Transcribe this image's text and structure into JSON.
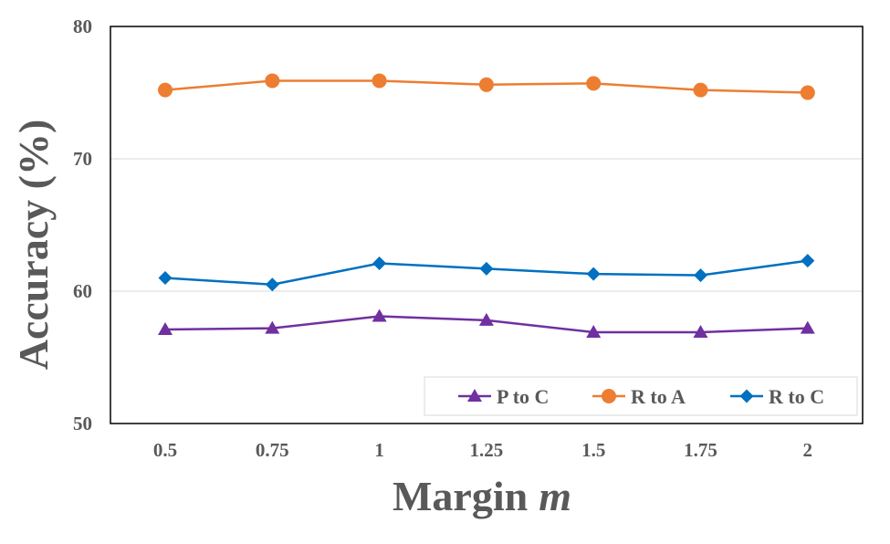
{
  "chart_data": {
    "type": "line",
    "x": [
      "0.5",
      "0.75",
      "1",
      "1.25",
      "1.5",
      "1.75",
      "2"
    ],
    "xlabel_main": "Margin",
    "xlabel_var": "m",
    "ylabel": "Accuracy (%)",
    "ylim": [
      50,
      80
    ],
    "yticks": [
      50,
      60,
      70,
      80
    ],
    "grid": "horizontal",
    "legend_position": "bottom-right",
    "series": [
      {
        "name": "P to C",
        "color": "#7030A0",
        "marker": "triangle",
        "values": [
          57.1,
          57.2,
          58.1,
          57.8,
          56.9,
          56.9,
          57.2
        ]
      },
      {
        "name": "R to A",
        "color": "#ED7D31",
        "marker": "circle",
        "values": [
          75.2,
          75.9,
          75.9,
          75.6,
          75.7,
          75.2,
          75.0
        ]
      },
      {
        "name": "R to C",
        "color": "#0070C0",
        "marker": "diamond",
        "values": [
          61.0,
          60.5,
          62.1,
          61.7,
          61.3,
          61.2,
          62.3
        ]
      }
    ]
  }
}
